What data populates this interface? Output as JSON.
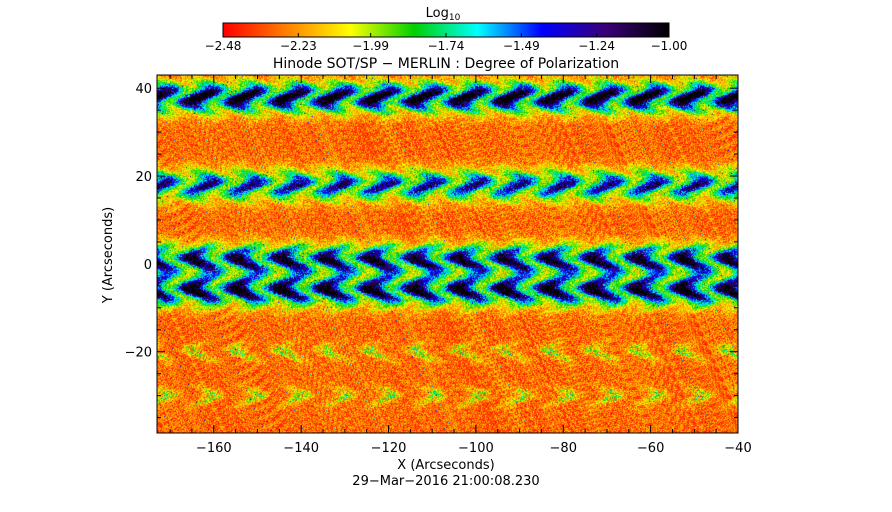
{
  "chart_data": {
    "type": "heatmap",
    "title": "Hinode SOT/SP − MERLIN : Degree of Polarization",
    "xlabel": "X (Arcseconds)",
    "ylabel": "Y (Arcseconds)",
    "timestamp": "29−Mar−2016 21:00:08.230",
    "xlim": [
      -173,
      -40
    ],
    "ylim": [
      -38.5,
      43
    ],
    "x_ticks": [
      -160,
      -140,
      -120,
      -100,
      -80,
      -60,
      -40
    ],
    "x_tick_labels": [
      "−160",
      "−140",
      "−120",
      "−100",
      "−80",
      "−60",
      "−40"
    ],
    "y_ticks": [
      -20,
      0,
      20,
      40
    ],
    "y_tick_labels": [
      "−20",
      "0",
      "20",
      "40"
    ],
    "colorbar": {
      "label_base": "Log",
      "label_sub": "10",
      "range": [
        -2.48,
        -1.0
      ],
      "ticks": [
        -2.48,
        -2.23,
        -1.99,
        -1.74,
        -1.49,
        -1.24,
        -1.0
      ],
      "tick_labels": [
        "−2.48",
        "−2.23",
        "−1.99",
        "−1.74",
        "−1.49",
        "−1.24",
        "−1.00"
      ],
      "colormap": [
        "#ff0000",
        "#ff8000",
        "#ffff00",
        "#00d000",
        "#00ffff",
        "#0000ff",
        "#3a0078",
        "#000000"
      ]
    },
    "features": {
      "background_level": -2.3,
      "strong_band_centers_y": [
        38,
        18,
        1,
        -6
      ],
      "strong_band_amplitudes": [
        1.0,
        0.75,
        0.9,
        0.95
      ],
      "weak_band_centers_y": [
        -20,
        -30
      ],
      "cell_period_x": 10.2,
      "peak_level": -1.1
    }
  }
}
